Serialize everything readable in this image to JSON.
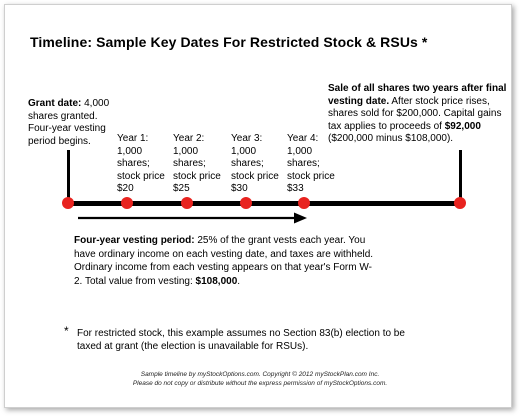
{
  "title": "Timeline: Sample Key Dates For Restricted Stock & RSUs *",
  "colors": {
    "marker": "#e8231f",
    "line": "#000000"
  },
  "grant": {
    "heading": "Grant date:",
    "text": " 4,000 shares granted. Four-year vesting period begins."
  },
  "years": [
    {
      "label": "Year 1:",
      "text": "1,000 shares; stock price $20"
    },
    {
      "label": "Year 2:",
      "text": "1,000 shares; stock price $25"
    },
    {
      "label": "Year 3:",
      "text": "1,000 shares; stock price $30"
    },
    {
      "label": "Year 4:",
      "text": "1,000 shares; stock price $33"
    }
  ],
  "sale": {
    "heading": "Sale of all shares two years after final vesting date.",
    "text_before": " After stock price rises, shares sold for $200,000. Capital gains tax applies to proceeds of ",
    "amount": "$92,000",
    "text_after": " ($200,000 minus $108,000)."
  },
  "vesting": {
    "heading": "Four-year vesting period:",
    "text": " 25% of the grant vests each year. You have ordinary income on each vesting date, and taxes are withheld. Ordinary income from each vesting appears on that year's Form W-2. Total value from vesting: ",
    "total": "$108,000",
    "end": "."
  },
  "footnote": {
    "marker": "*",
    "text": "For restricted stock, this example assumes no Section 83(b) election to be taxed at grant (the election is unavailable for RSUs)."
  },
  "credit": {
    "line1": "Sample timeline by myStockOptions.com. Copyright © 2012 myStockPlan.com Inc.",
    "line2": "Please do not copy or distribute without the express permission of myStockOptions.com."
  }
}
